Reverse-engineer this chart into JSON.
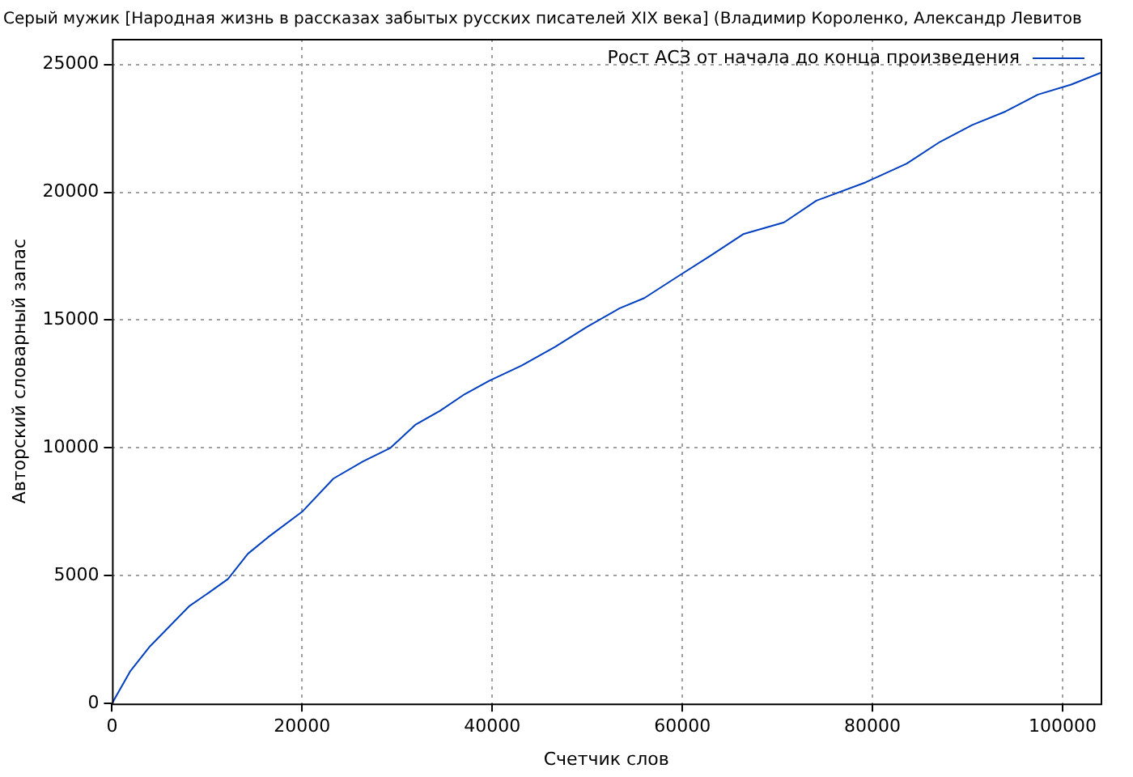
{
  "chart_data": {
    "type": "line",
    "title": "Серый мужик [Народная жизнь в рассказах забытых русских писателей XIX века] (Владимир Короленко, Александр Левитов",
    "xlabel": "Счетчик слов",
    "ylabel": "Авторский словарный запас",
    "x": [
      0,
      1900,
      4000,
      6000,
      8100,
      10200,
      12200,
      14300,
      16400,
      20000,
      23300,
      26400,
      29300,
      31900,
      34500,
      37100,
      39700,
      43100,
      46600,
      50000,
      53400,
      56000,
      59500,
      62900,
      66400,
      70700,
      74100,
      79300,
      83600,
      87100,
      90500,
      94000,
      97400,
      100900,
      104000
    ],
    "series": [
      {
        "name": "Рост АСЗ от начала до конца произведения",
        "color": "#0040c0",
        "values": [
          0,
          1250,
          2240,
          3000,
          3800,
          4340,
          4870,
          5860,
          6500,
          7500,
          8800,
          9470,
          10000,
          10900,
          11450,
          12100,
          12630,
          13220,
          13950,
          14740,
          15460,
          15860,
          16700,
          17500,
          18360,
          18820,
          19670,
          20390,
          21120,
          21970,
          22630,
          23160,
          23820,
          24210,
          24670
        ]
      }
    ],
    "xlim": [
      0,
      104000
    ],
    "xticks": [
      0,
      20000,
      40000,
      60000,
      80000,
      100000
    ],
    "ylim": [
      0,
      26000
    ],
    "yticks": [
      0,
      5000,
      10000,
      15000,
      20000,
      25000
    ],
    "grid": true,
    "legend": "top right",
    "marker": "none",
    "line_style": "solid"
  }
}
